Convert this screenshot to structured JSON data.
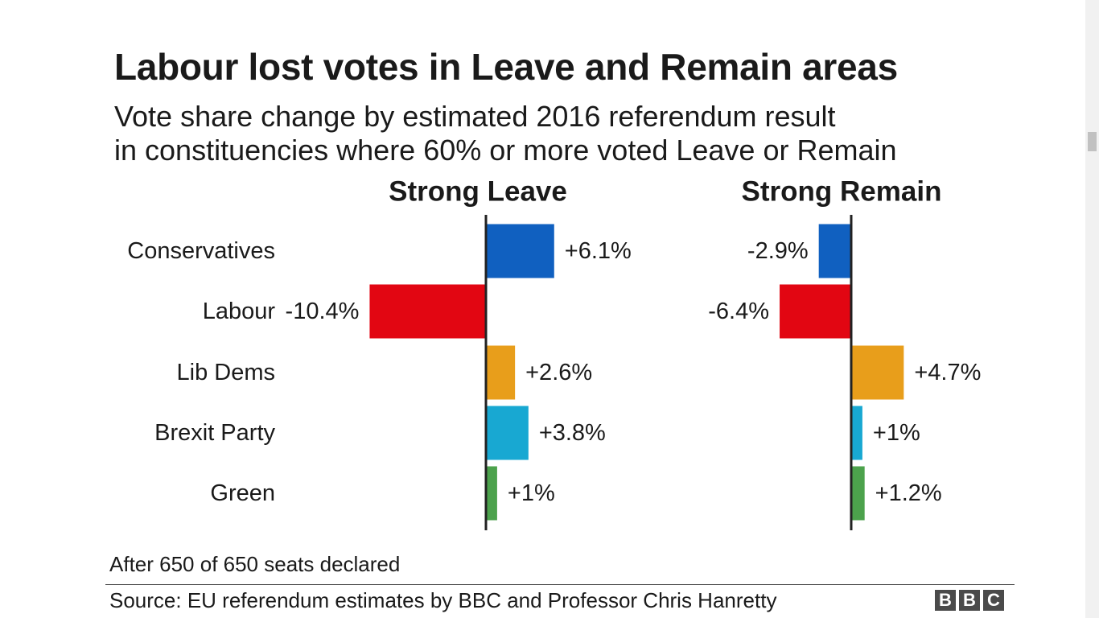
{
  "chart_data": {
    "type": "bar",
    "orientation": "horizontal",
    "title": "Labour lost votes in Leave and Remain areas",
    "subtitle_lines": [
      "Vote share change by estimated 2016 referendum result",
      "in constituencies where 60% or more voted Leave or Remain"
    ],
    "categories": [
      "Conservatives",
      "Labour",
      "Lib Dems",
      "Brexit Party",
      "Green"
    ],
    "colors": [
      "#1060c0",
      "#e20612",
      "#e89e1b",
      "#18a8d2",
      "#4ca24c"
    ],
    "panels": [
      {
        "name": "Strong Leave",
        "values": [
          6.1,
          -10.4,
          2.6,
          3.8,
          1.0
        ],
        "labels": [
          "+6.1%",
          "-10.4%",
          "+2.6%",
          "+3.8%",
          "+1%"
        ]
      },
      {
        "name": "Strong Remain",
        "values": [
          -2.9,
          -6.4,
          4.7,
          1.0,
          1.2
        ],
        "labels": [
          "-2.9%",
          "-6.4%",
          "+4.7%",
          "+1%",
          "+1.2%"
        ]
      }
    ],
    "grid": false,
    "legend": "none"
  },
  "footer": {
    "note": "After 650 of 650 seats declared",
    "source": "Source: EU referendum estimates by BBC and Professor Chris Hanretty",
    "logo_letters": [
      "B",
      "B",
      "C"
    ]
  }
}
